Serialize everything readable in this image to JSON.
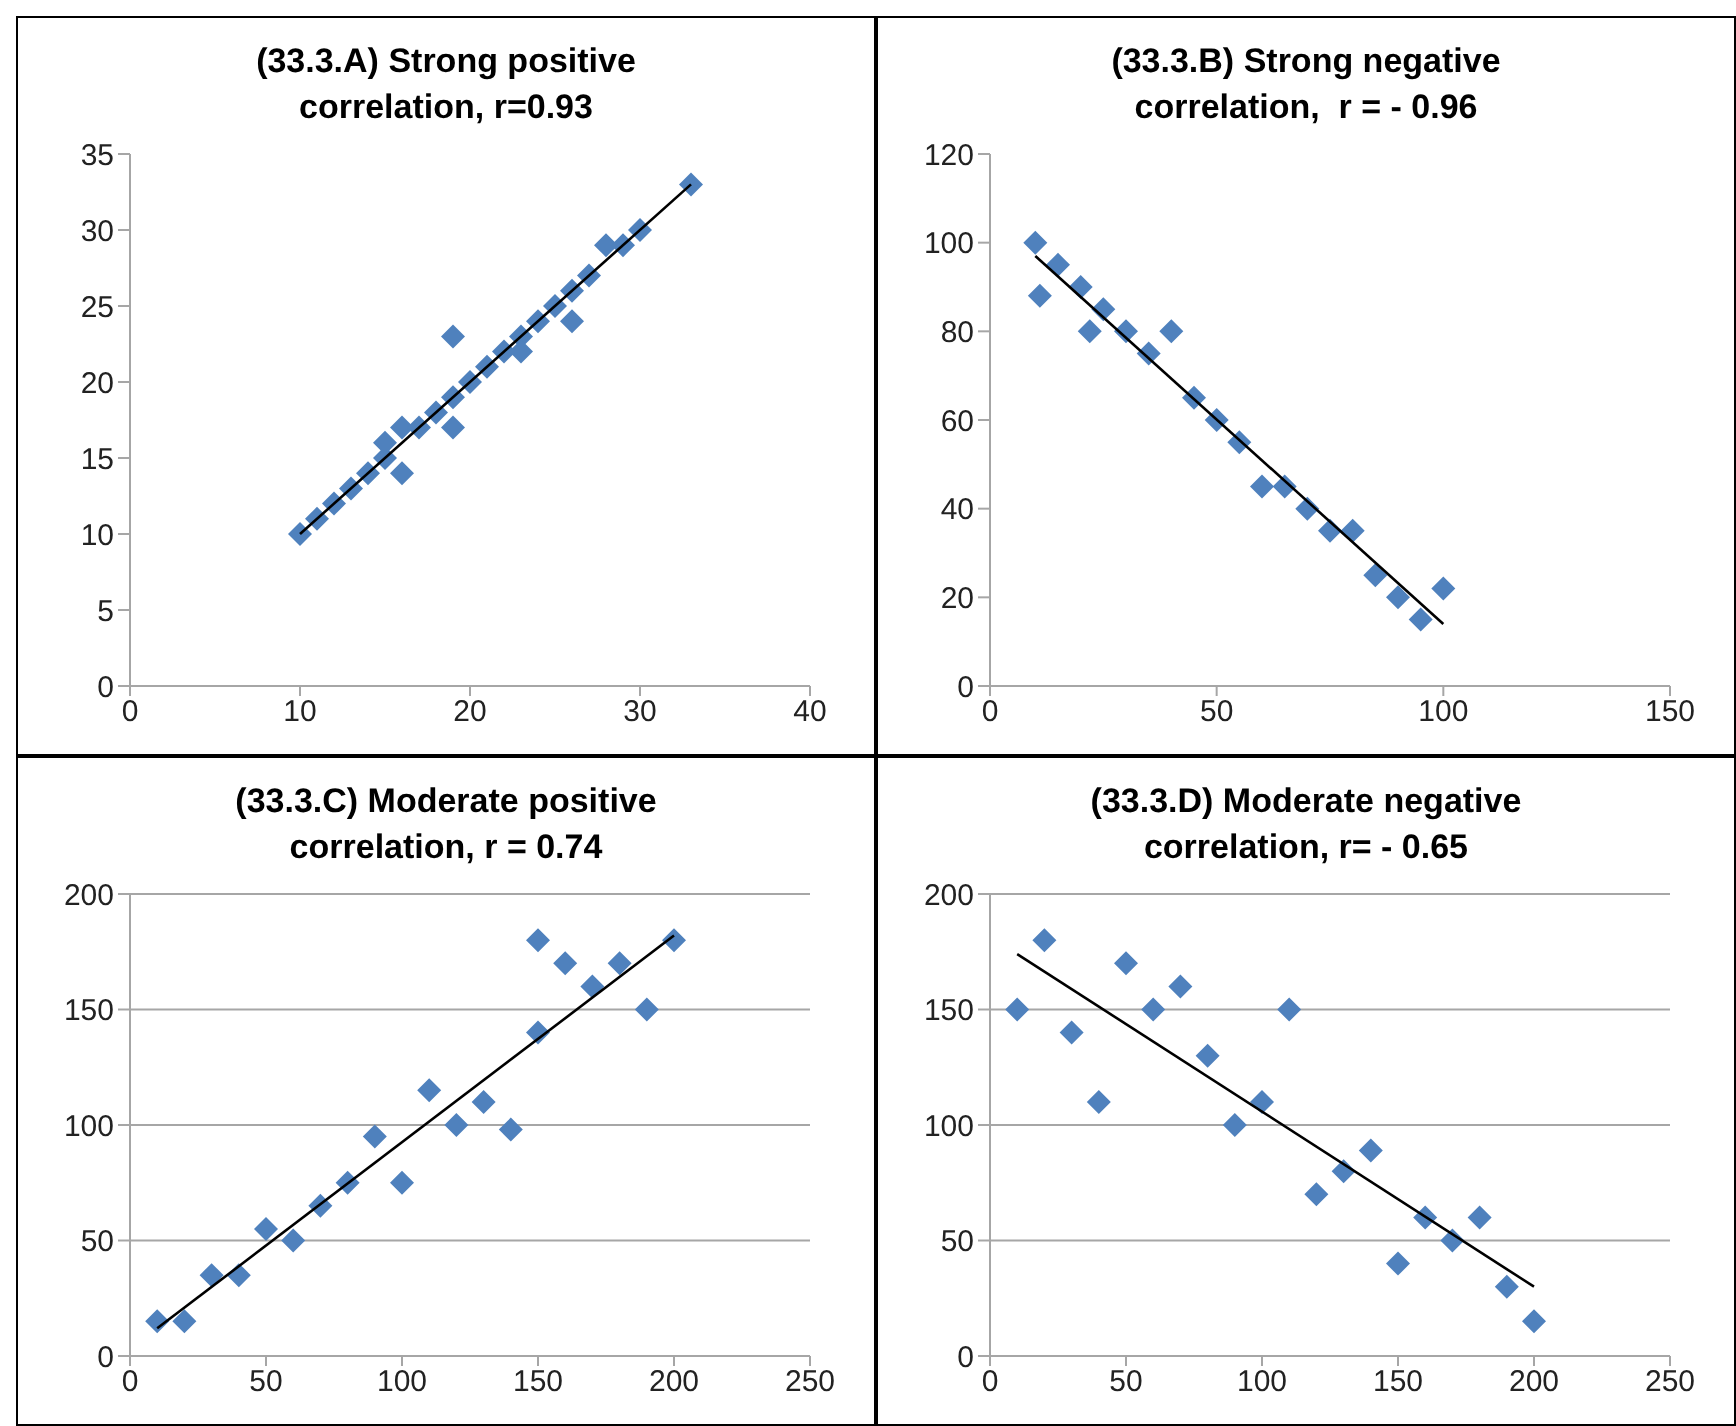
{
  "chart_data": [
    {
      "type": "scatter",
      "title": "(33.3.A) Strong positive correlation, r=0.93",
      "xlim": [
        0,
        40
      ],
      "xticks": [
        0,
        10,
        20,
        30,
        40
      ],
      "ylim": [
        0,
        35
      ],
      "yticks": [
        0,
        5,
        10,
        15,
        20,
        25,
        30,
        35
      ],
      "series": [
        {
          "color": "#4f81bd",
          "marker": "diamond",
          "x": [
            10,
            11,
            12,
            13,
            14,
            15,
            15,
            16,
            16,
            17,
            18,
            19,
            19,
            19,
            20,
            21,
            22,
            23,
            23,
            24,
            25,
            26,
            26,
            27,
            28,
            29,
            30,
            33
          ],
          "values": [
            10,
            11,
            12,
            13,
            14,
            15,
            16,
            17,
            14,
            17,
            18,
            19,
            23,
            17,
            20,
            21,
            22,
            23,
            22,
            24,
            25,
            26,
            24,
            27,
            29,
            29,
            30,
            33
          ]
        },
        {
          "type": "line",
          "color": "#000000",
          "x": [
            10,
            33
          ],
          "values": [
            10,
            33
          ]
        }
      ]
    },
    {
      "type": "scatter",
      "title": "(33.3.B) Strong negative correlation,  r = - 0.96",
      "xlim": [
        0,
        150
      ],
      "xticks": [
        0,
        50,
        100,
        150
      ],
      "ylim": [
        0,
        120
      ],
      "yticks": [
        0,
        20,
        40,
        60,
        80,
        100,
        120
      ],
      "series": [
        {
          "color": "#4f81bd",
          "marker": "diamond",
          "x": [
            10,
            11,
            15,
            20,
            22,
            25,
            30,
            35,
            40,
            45,
            50,
            55,
            60,
            65,
            70,
            75,
            80,
            85,
            90,
            95,
            100
          ],
          "values": [
            100,
            88,
            95,
            90,
            80,
            85,
            80,
            75,
            80,
            65,
            60,
            55,
            45,
            45,
            40,
            35,
            35,
            25,
            20,
            15,
            22
          ]
        },
        {
          "type": "line",
          "color": "#000000",
          "x": [
            10,
            100
          ],
          "values": [
            97,
            14
          ]
        }
      ]
    },
    {
      "type": "scatter",
      "title": "(33.3.C) Moderate positive correlation, r = 0.74",
      "grid": "y",
      "xlim": [
        0,
        250
      ],
      "xticks": [
        0,
        50,
        100,
        150,
        200,
        250
      ],
      "ylim": [
        0,
        200
      ],
      "yticks": [
        0,
        50,
        100,
        150,
        200
      ],
      "series": [
        {
          "color": "#4f81bd",
          "marker": "diamond",
          "x": [
            10,
            20,
            30,
            40,
            50,
            60,
            70,
            80,
            90,
            100,
            110,
            120,
            130,
            140,
            150,
            150,
            160,
            170,
            180,
            190,
            200
          ],
          "values": [
            15,
            15,
            35,
            35,
            55,
            50,
            65,
            75,
            95,
            75,
            115,
            100,
            110,
            98,
            140,
            180,
            170,
            160,
            170,
            150,
            180
          ]
        },
        {
          "type": "line",
          "color": "#000000",
          "x": [
            10,
            200
          ],
          "values": [
            12,
            182
          ]
        }
      ]
    },
    {
      "type": "scatter",
      "title": "(33.3.D) Moderate negative correlation, r= - 0.65",
      "grid": "y",
      "xlim": [
        0,
        250
      ],
      "xticks": [
        0,
        50,
        100,
        150,
        200,
        250
      ],
      "ylim": [
        0,
        200
      ],
      "yticks": [
        0,
        50,
        100,
        150,
        200
      ],
      "series": [
        {
          "color": "#4f81bd",
          "marker": "diamond",
          "x": [
            10,
            20,
            30,
            40,
            50,
            60,
            70,
            80,
            90,
            100,
            110,
            120,
            130,
            140,
            150,
            160,
            170,
            180,
            190,
            200
          ],
          "values": [
            150,
            180,
            140,
            110,
            170,
            150,
            160,
            130,
            100,
            110,
            150,
            70,
            80,
            89,
            40,
            60,
            50,
            60,
            30,
            15
          ]
        },
        {
          "type": "line",
          "color": "#000000",
          "x": [
            10,
            200
          ],
          "values": [
            174,
            30
          ]
        }
      ]
    }
  ]
}
